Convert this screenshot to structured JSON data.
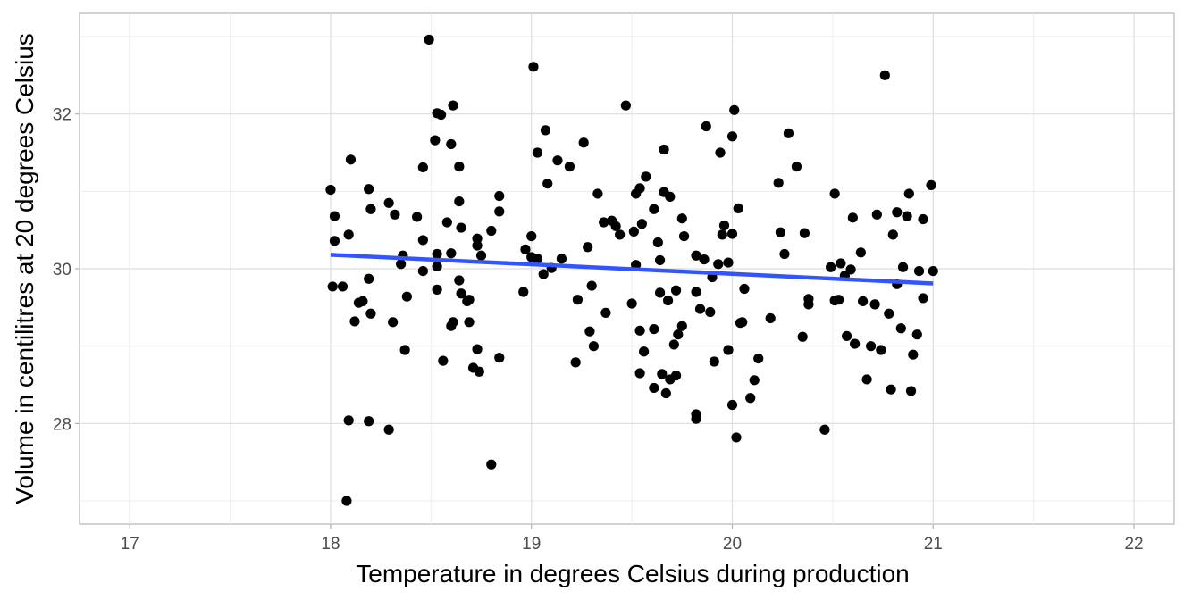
{
  "chart_data": {
    "type": "scatter",
    "title": "",
    "xlabel": "Temperature in degrees Celsius during production",
    "ylabel": "Volume in centilitres at 20 degrees Celsius",
    "xlim": [
      16.75,
      22.2
    ],
    "ylim": [
      26.7,
      33.3
    ],
    "x_ticks": [
      17,
      18,
      19,
      20,
      21,
      22
    ],
    "x_tick_labels": [
      "17",
      "18",
      "19",
      "20",
      "21",
      "22"
    ],
    "y_ticks": [
      28,
      30,
      32
    ],
    "y_tick_labels": [
      "28",
      "30",
      "32"
    ],
    "grid": true,
    "legend": "none",
    "point_color": "#000000",
    "trend_line": {
      "x": [
        18,
        21
      ],
      "y": [
        30.18,
        29.81
      ],
      "color": "#3355ff"
    },
    "points": [
      {
        "x": 18.0,
        "y": 31.02
      },
      {
        "x": 18.02,
        "y": 30.68
      },
      {
        "x": 18.02,
        "y": 30.36
      },
      {
        "x": 18.01,
        "y": 29.77
      },
      {
        "x": 18.06,
        "y": 29.77
      },
      {
        "x": 18.09,
        "y": 30.44
      },
      {
        "x": 18.1,
        "y": 31.41
      },
      {
        "x": 18.09,
        "y": 28.04
      },
      {
        "x": 18.08,
        "y": 27.0
      },
      {
        "x": 18.12,
        "y": 29.32
      },
      {
        "x": 18.14,
        "y": 29.56
      },
      {
        "x": 18.16,
        "y": 29.58
      },
      {
        "x": 18.19,
        "y": 31.03
      },
      {
        "x": 18.2,
        "y": 30.77
      },
      {
        "x": 18.19,
        "y": 29.87
      },
      {
        "x": 18.2,
        "y": 29.42
      },
      {
        "x": 18.19,
        "y": 28.03
      },
      {
        "x": 18.29,
        "y": 30.85
      },
      {
        "x": 18.32,
        "y": 30.7
      },
      {
        "x": 18.31,
        "y": 29.31
      },
      {
        "x": 18.29,
        "y": 27.92
      },
      {
        "x": 18.35,
        "y": 30.06
      },
      {
        "x": 18.36,
        "y": 30.17
      },
      {
        "x": 18.38,
        "y": 29.64
      },
      {
        "x": 18.37,
        "y": 28.95
      },
      {
        "x": 18.43,
        "y": 30.67
      },
      {
        "x": 18.46,
        "y": 31.31
      },
      {
        "x": 18.46,
        "y": 30.37
      },
      {
        "x": 18.46,
        "y": 29.97
      },
      {
        "x": 18.49,
        "y": 32.96
      },
      {
        "x": 18.52,
        "y": 31.66
      },
      {
        "x": 18.53,
        "y": 32.01
      },
      {
        "x": 18.55,
        "y": 31.99
      },
      {
        "x": 18.53,
        "y": 30.19
      },
      {
        "x": 18.53,
        "y": 30.03
      },
      {
        "x": 18.53,
        "y": 29.73
      },
      {
        "x": 18.56,
        "y": 28.81
      },
      {
        "x": 18.58,
        "y": 30.6
      },
      {
        "x": 18.6,
        "y": 30.2
      },
      {
        "x": 18.6,
        "y": 29.26
      },
      {
        "x": 18.61,
        "y": 29.31
      },
      {
        "x": 18.6,
        "y": 31.61
      },
      {
        "x": 18.61,
        "y": 32.11
      },
      {
        "x": 18.64,
        "y": 31.32
      },
      {
        "x": 18.64,
        "y": 30.87
      },
      {
        "x": 18.65,
        "y": 30.53
      },
      {
        "x": 18.64,
        "y": 29.85
      },
      {
        "x": 18.65,
        "y": 29.68
      },
      {
        "x": 18.68,
        "y": 29.58
      },
      {
        "x": 18.69,
        "y": 29.6
      },
      {
        "x": 18.69,
        "y": 29.31
      },
      {
        "x": 18.71,
        "y": 28.72
      },
      {
        "x": 18.73,
        "y": 28.96
      },
      {
        "x": 18.74,
        "y": 28.67
      },
      {
        "x": 18.73,
        "y": 30.39
      },
      {
        "x": 18.73,
        "y": 30.3
      },
      {
        "x": 18.75,
        "y": 30.17
      },
      {
        "x": 18.8,
        "y": 30.49
      },
      {
        "x": 18.84,
        "y": 30.94
      },
      {
        "x": 18.84,
        "y": 30.74
      },
      {
        "x": 18.84,
        "y": 28.85
      },
      {
        "x": 18.8,
        "y": 27.47
      },
      {
        "x": 18.96,
        "y": 29.7
      },
      {
        "x": 18.97,
        "y": 30.25
      },
      {
        "x": 19.0,
        "y": 30.42
      },
      {
        "x": 19.0,
        "y": 30.15
      },
      {
        "x": 19.03,
        "y": 30.13
      },
      {
        "x": 19.01,
        "y": 32.61
      },
      {
        "x": 19.03,
        "y": 31.5
      },
      {
        "x": 19.07,
        "y": 31.79
      },
      {
        "x": 19.08,
        "y": 31.1
      },
      {
        "x": 19.06,
        "y": 29.93
      },
      {
        "x": 19.1,
        "y": 30.01
      },
      {
        "x": 19.13,
        "y": 31.4
      },
      {
        "x": 19.15,
        "y": 30.13
      },
      {
        "x": 19.19,
        "y": 31.32
      },
      {
        "x": 19.22,
        "y": 28.79
      },
      {
        "x": 19.23,
        "y": 29.6
      },
      {
        "x": 19.26,
        "y": 31.63
      },
      {
        "x": 19.28,
        "y": 30.28
      },
      {
        "x": 19.29,
        "y": 29.19
      },
      {
        "x": 19.3,
        "y": 29.78
      },
      {
        "x": 19.31,
        "y": 29.0
      },
      {
        "x": 19.33,
        "y": 30.97
      },
      {
        "x": 19.36,
        "y": 30.6
      },
      {
        "x": 19.37,
        "y": 29.43
      },
      {
        "x": 19.4,
        "y": 30.62
      },
      {
        "x": 19.42,
        "y": 30.55
      },
      {
        "x": 19.44,
        "y": 30.44
      },
      {
        "x": 19.47,
        "y": 32.11
      },
      {
        "x": 19.5,
        "y": 29.55
      },
      {
        "x": 19.51,
        "y": 30.48
      },
      {
        "x": 19.52,
        "y": 30.05
      },
      {
        "x": 19.52,
        "y": 30.97
      },
      {
        "x": 19.54,
        "y": 31.04
      },
      {
        "x": 19.54,
        "y": 29.2
      },
      {
        "x": 19.54,
        "y": 28.65
      },
      {
        "x": 19.55,
        "y": 30.58
      },
      {
        "x": 19.56,
        "y": 28.93
      },
      {
        "x": 19.57,
        "y": 31.19
      },
      {
        "x": 19.61,
        "y": 30.77
      },
      {
        "x": 19.61,
        "y": 29.22
      },
      {
        "x": 19.61,
        "y": 28.46
      },
      {
        "x": 19.63,
        "y": 30.34
      },
      {
        "x": 19.64,
        "y": 30.11
      },
      {
        "x": 19.64,
        "y": 29.69
      },
      {
        "x": 19.65,
        "y": 28.64
      },
      {
        "x": 19.66,
        "y": 31.54
      },
      {
        "x": 19.66,
        "y": 30.99
      },
      {
        "x": 19.67,
        "y": 28.39
      },
      {
        "x": 19.68,
        "y": 29.59
      },
      {
        "x": 19.69,
        "y": 30.93
      },
      {
        "x": 19.69,
        "y": 28.57
      },
      {
        "x": 19.71,
        "y": 29.02
      },
      {
        "x": 19.72,
        "y": 29.72
      },
      {
        "x": 19.72,
        "y": 28.62
      },
      {
        "x": 19.73,
        "y": 29.15
      },
      {
        "x": 19.75,
        "y": 30.65
      },
      {
        "x": 19.75,
        "y": 29.26
      },
      {
        "x": 19.76,
        "y": 30.42
      },
      {
        "x": 19.82,
        "y": 30.17
      },
      {
        "x": 19.82,
        "y": 29.7
      },
      {
        "x": 19.82,
        "y": 28.12
      },
      {
        "x": 19.82,
        "y": 28.06
      },
      {
        "x": 19.84,
        "y": 29.48
      },
      {
        "x": 19.86,
        "y": 30.12
      },
      {
        "x": 19.87,
        "y": 31.84
      },
      {
        "x": 19.89,
        "y": 29.44
      },
      {
        "x": 19.9,
        "y": 29.89
      },
      {
        "x": 19.91,
        "y": 28.8
      },
      {
        "x": 19.93,
        "y": 30.06
      },
      {
        "x": 19.94,
        "y": 31.5
      },
      {
        "x": 19.95,
        "y": 30.44
      },
      {
        "x": 19.96,
        "y": 30.56
      },
      {
        "x": 19.98,
        "y": 30.08
      },
      {
        "x": 19.98,
        "y": 28.95
      },
      {
        "x": 20.0,
        "y": 31.71
      },
      {
        "x": 20.0,
        "y": 30.45
      },
      {
        "x": 20.0,
        "y": 28.24
      },
      {
        "x": 20.01,
        "y": 32.05
      },
      {
        "x": 20.03,
        "y": 30.78
      },
      {
        "x": 20.02,
        "y": 27.82
      },
      {
        "x": 20.05,
        "y": 29.31
      },
      {
        "x": 20.04,
        "y": 29.3
      },
      {
        "x": 20.06,
        "y": 29.74
      },
      {
        "x": 20.09,
        "y": 28.33
      },
      {
        "x": 20.11,
        "y": 28.56
      },
      {
        "x": 20.13,
        "y": 28.84
      },
      {
        "x": 20.19,
        "y": 29.36
      },
      {
        "x": 20.23,
        "y": 31.11
      },
      {
        "x": 20.24,
        "y": 30.47
      },
      {
        "x": 20.26,
        "y": 30.19
      },
      {
        "x": 20.28,
        "y": 31.75
      },
      {
        "x": 20.32,
        "y": 31.32
      },
      {
        "x": 20.35,
        "y": 29.12
      },
      {
        "x": 20.36,
        "y": 30.46
      },
      {
        "x": 20.38,
        "y": 29.61
      },
      {
        "x": 20.38,
        "y": 29.54
      },
      {
        "x": 20.46,
        "y": 27.92
      },
      {
        "x": 20.49,
        "y": 30.02
      },
      {
        "x": 20.51,
        "y": 30.97
      },
      {
        "x": 20.51,
        "y": 29.59
      },
      {
        "x": 20.53,
        "y": 29.6
      },
      {
        "x": 20.54,
        "y": 30.07
      },
      {
        "x": 20.56,
        "y": 29.91
      },
      {
        "x": 20.57,
        "y": 29.13
      },
      {
        "x": 20.59,
        "y": 29.99
      },
      {
        "x": 20.6,
        "y": 30.66
      },
      {
        "x": 20.61,
        "y": 29.03
      },
      {
        "x": 20.64,
        "y": 30.21
      },
      {
        "x": 20.65,
        "y": 29.58
      },
      {
        "x": 20.67,
        "y": 28.57
      },
      {
        "x": 20.69,
        "y": 29.0
      },
      {
        "x": 20.71,
        "y": 29.54
      },
      {
        "x": 20.72,
        "y": 30.7
      },
      {
        "x": 20.74,
        "y": 28.95
      },
      {
        "x": 20.76,
        "y": 32.5
      },
      {
        "x": 20.78,
        "y": 29.42
      },
      {
        "x": 20.79,
        "y": 28.44
      },
      {
        "x": 20.8,
        "y": 30.44
      },
      {
        "x": 20.82,
        "y": 30.73
      },
      {
        "x": 20.82,
        "y": 29.8
      },
      {
        "x": 20.84,
        "y": 29.23
      },
      {
        "x": 20.85,
        "y": 30.02
      },
      {
        "x": 20.87,
        "y": 30.68
      },
      {
        "x": 20.88,
        "y": 30.97
      },
      {
        "x": 20.89,
        "y": 28.42
      },
      {
        "x": 20.9,
        "y": 28.89
      },
      {
        "x": 20.92,
        "y": 29.15
      },
      {
        "x": 20.93,
        "y": 29.97
      },
      {
        "x": 20.95,
        "y": 30.64
      },
      {
        "x": 20.95,
        "y": 29.62
      },
      {
        "x": 20.99,
        "y": 31.08
      },
      {
        "x": 21.0,
        "y": 29.97
      }
    ]
  }
}
